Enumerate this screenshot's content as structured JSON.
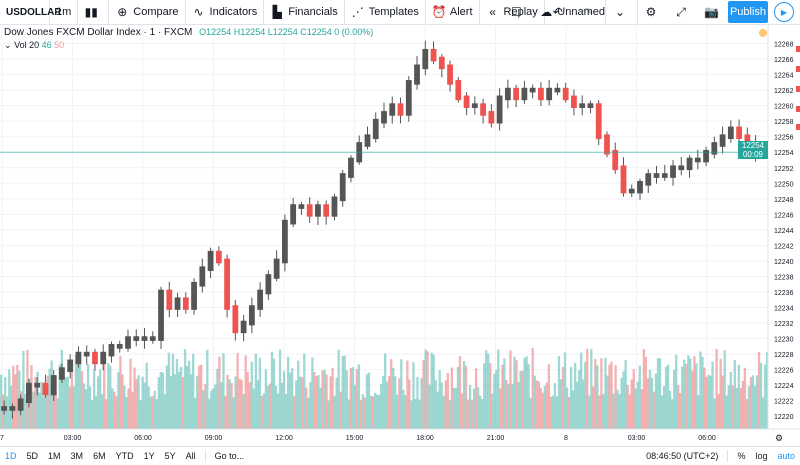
{
  "toolbar": {
    "symbol": "USDOLLAR",
    "interval": "1m",
    "compare": "Compare",
    "indicators": "Indicators",
    "financials": "Financials",
    "templates": "Templates",
    "alert": "Alert",
    "replay": "Replay",
    "layout_name": "Unnamed",
    "publish": "Publish"
  },
  "legend": {
    "title": "Dow Jones FXCM Dollar Index · 1 · FXCM",
    "ohlc": "O12254 H12254 L12254 C12254 0 (0.00%)",
    "vol_label": "Vol 20",
    "vol_value1": "46",
    "vol_value2": "50"
  },
  "price_axis": {
    "ticks": [
      "12268",
      "12266",
      "12264",
      "12262",
      "12260",
      "12258",
      "12256",
      "12254",
      "12252",
      "12250",
      "12248",
      "12246",
      "12244",
      "12242",
      "12240",
      "12238",
      "12236",
      "12234",
      "12232",
      "12230",
      "12228",
      "12226",
      "12224",
      "12222",
      "12220"
    ],
    "current_price": "12254",
    "countdown": "00:09"
  },
  "time_axis": {
    "ticks": [
      "7",
      "03:00",
      "06:00",
      "09:00",
      "12:00",
      "15:00",
      "18:00",
      "21:00",
      "8",
      "03:00",
      "06:00"
    ]
  },
  "bottom": {
    "ranges": [
      "1D",
      "5D",
      "1M",
      "3M",
      "6M",
      "YTD",
      "1Y",
      "5Y",
      "All"
    ],
    "goto": "Go to...",
    "clock": "08:46:50 (UTC+2)",
    "percent": "%",
    "log": "log",
    "auto": "auto"
  },
  "chart_data": {
    "type": "candlestick",
    "title": "Dow Jones FXCM Dollar Index",
    "ylim": [
      12219,
      12270
    ],
    "x": [
      "7",
      "03:00",
      "06:00",
      "09:00",
      "12:00",
      "15:00",
      "18:00",
      "21:00",
      "8",
      "03:00",
      "06:00"
    ],
    "close_path": [
      12221,
      12221,
      12222,
      12224,
      12224,
      12223,
      12225,
      12226,
      12227,
      12228,
      12228,
      12227,
      12228,
      12229,
      12229,
      12230,
      12230,
      12230,
      12230,
      12236,
      12234,
      12235,
      12234,
      12237,
      12239,
      12241,
      12240,
      12234,
      12231,
      12232,
      12234,
      12236,
      12238,
      12240,
      12245,
      12247,
      12247,
      12246,
      12247,
      12246,
      12248,
      12251,
      12253,
      12255,
      12256,
      12258,
      12259,
      12260,
      12259,
      12263,
      12265,
      12267,
      12266,
      12265,
      12263,
      12261,
      12260,
      12260,
      12259,
      12258,
      12261,
      12262,
      12261,
      12262,
      12262,
      12261,
      12262,
      12262,
      12261,
      12260,
      12260,
      12260,
      12256,
      12254,
      12252,
      12249,
      12249,
      12250,
      12251,
      12251,
      12251,
      12252,
      12252,
      12253,
      12253,
      12254,
      12255,
      12256,
      12257,
      12256,
      12255,
      12254,
      12254
    ],
    "volume_level": 0.9,
    "current_price": 12254
  }
}
